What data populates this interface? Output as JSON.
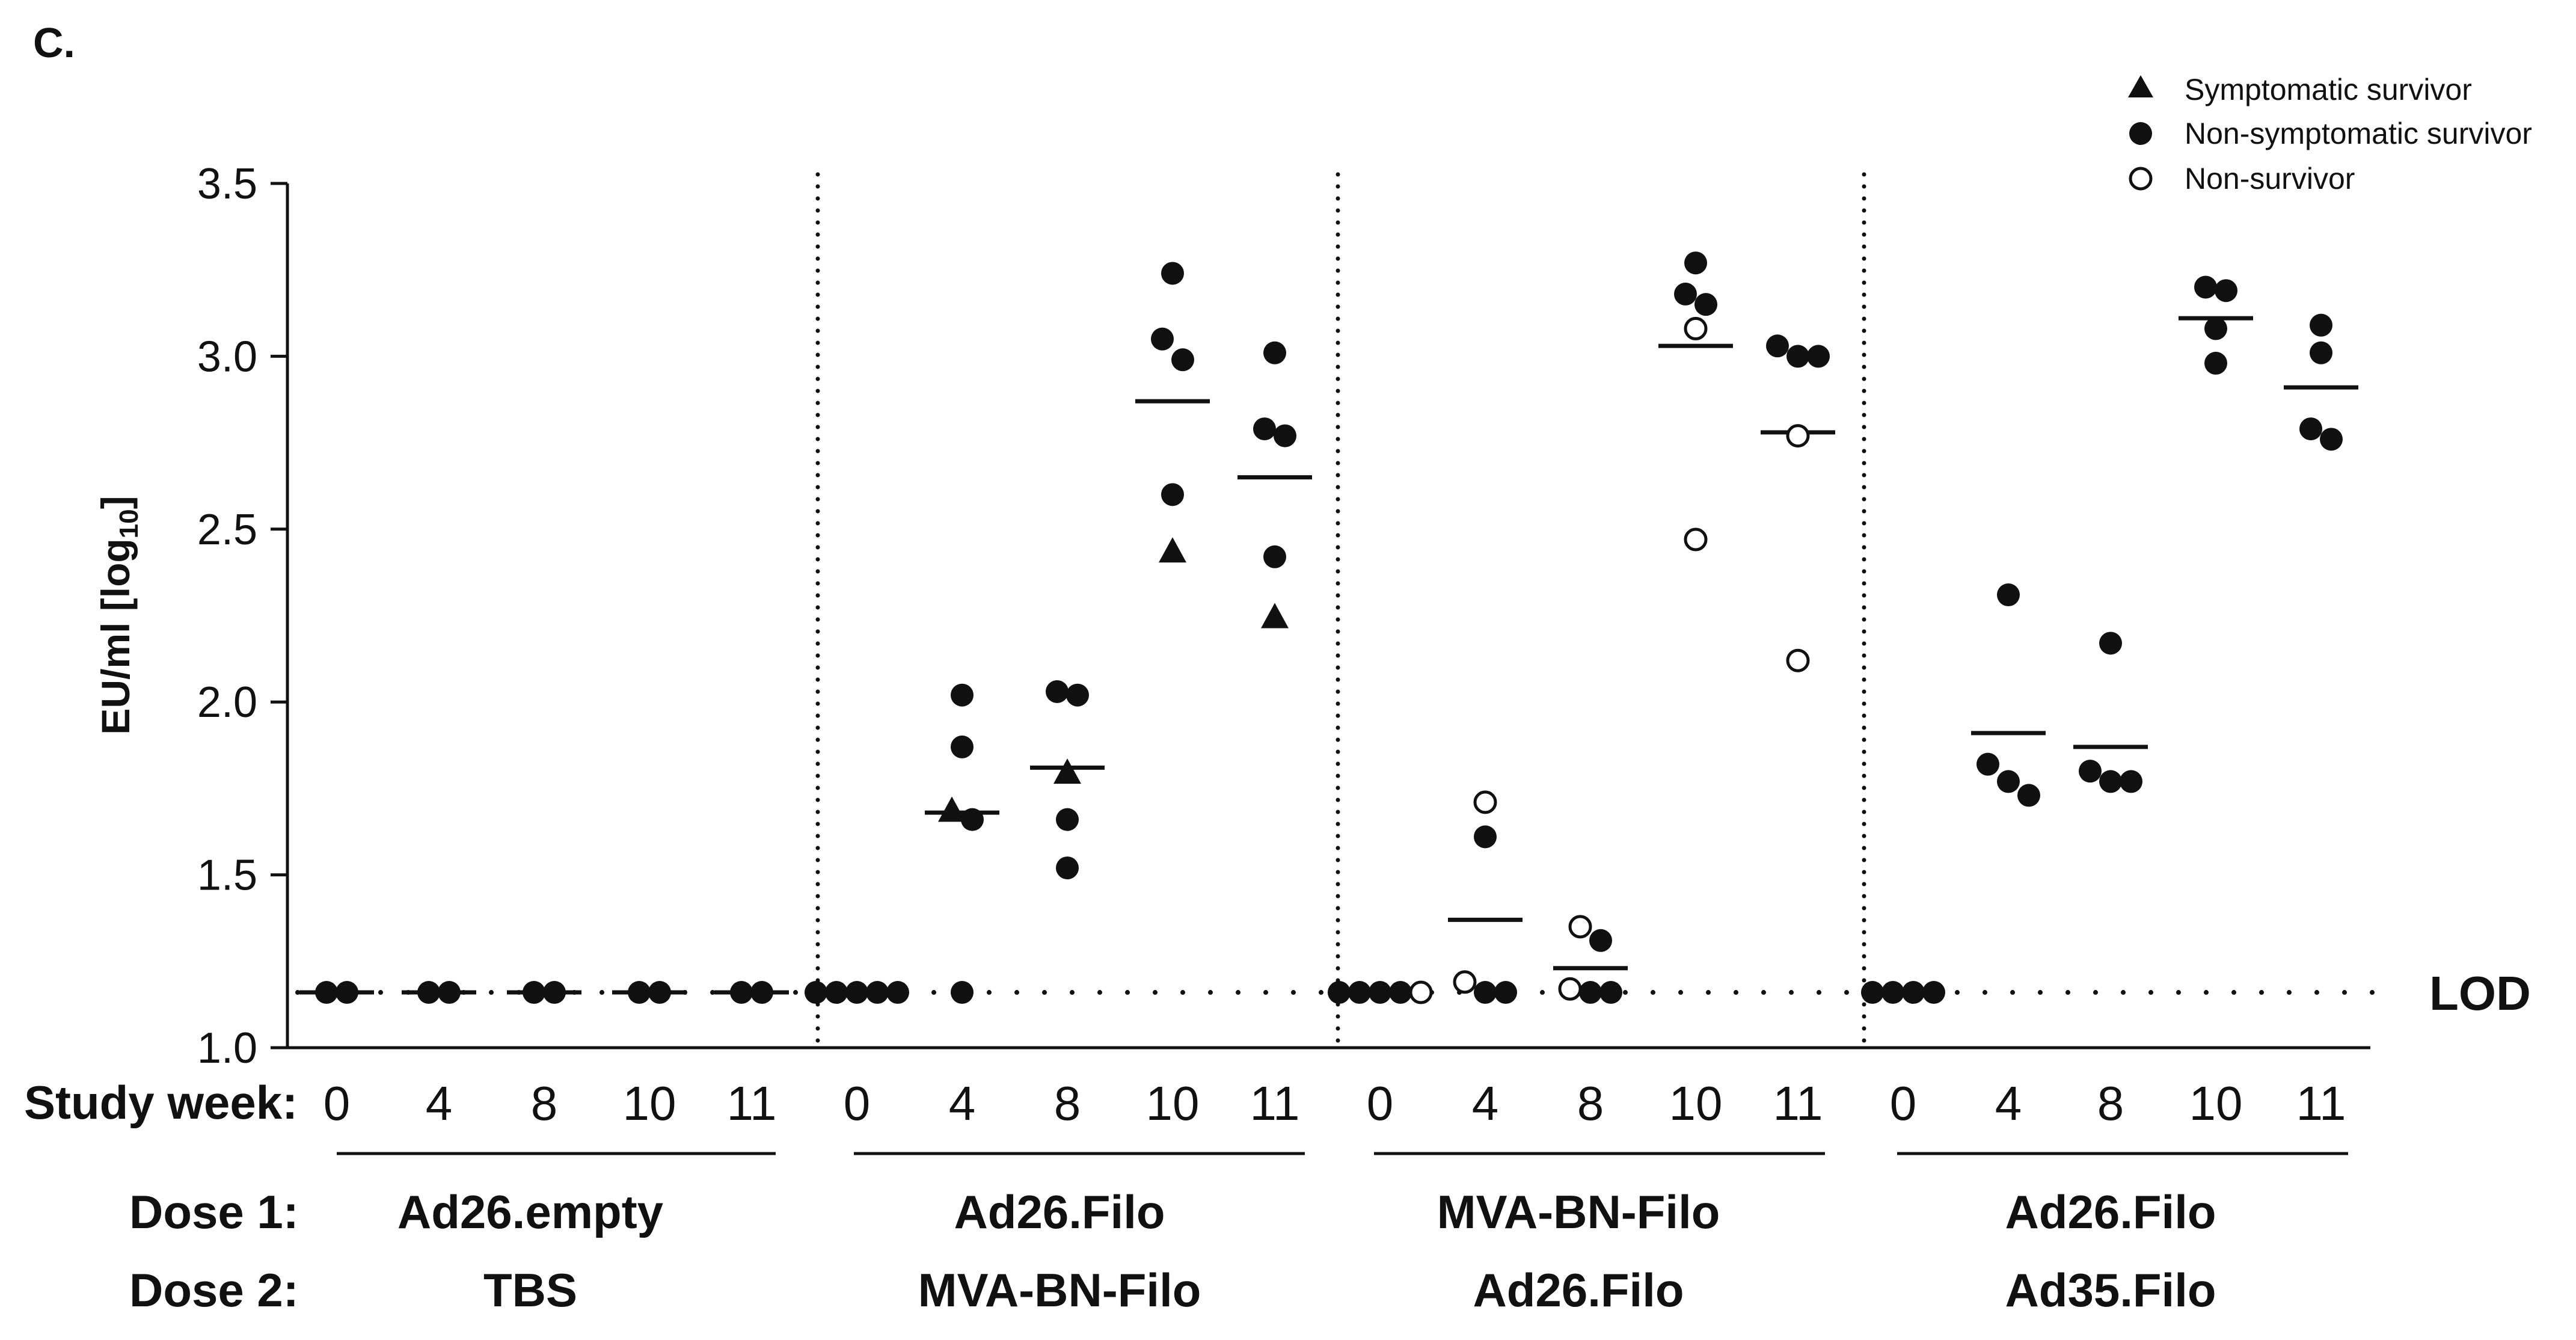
{
  "panel_label": "C.",
  "legend": [
    {
      "marker": "triangle",
      "label": "Symptomatic survivor"
    },
    {
      "marker": "filled-circle",
      "label": "Non-symptomatic survivor"
    },
    {
      "marker": "open-circle",
      "label": "Non-survivor"
    }
  ],
  "labels": {
    "study_week": "Study week:",
    "dose1": "Dose 1:",
    "dose2": "Dose 2:",
    "lod": "LOD"
  },
  "chart_data": {
    "type": "scatter",
    "title": "",
    "ylabel": "EU/ml [log10]",
    "ylim": [
      1.0,
      3.5
    ],
    "yticks": [
      "1.0",
      "1.5",
      "2.0",
      "2.5",
      "3.0",
      "3.5"
    ],
    "lod": 1.16,
    "weeks": [
      "0",
      "4",
      "8",
      "10",
      "11"
    ],
    "groups": [
      {
        "dose1": "Ad26.empty",
        "dose2": "TBS",
        "timepoints": [
          {
            "week": "0",
            "mean": 1.16,
            "points": [
              {
                "v": 1.16,
                "t": "filled"
              },
              {
                "v": 1.16,
                "t": "filled"
              }
            ]
          },
          {
            "week": "4",
            "mean": 1.16,
            "points": [
              {
                "v": 1.16,
                "t": "filled"
              },
              {
                "v": 1.16,
                "t": "filled"
              }
            ]
          },
          {
            "week": "8",
            "mean": 1.16,
            "points": [
              {
                "v": 1.16,
                "t": "filled"
              },
              {
                "v": 1.16,
                "t": "filled"
              }
            ]
          },
          {
            "week": "10",
            "mean": 1.16,
            "points": [
              {
                "v": 1.16,
                "t": "filled"
              },
              {
                "v": 1.16,
                "t": "filled"
              }
            ]
          },
          {
            "week": "11",
            "mean": 1.16,
            "points": [
              {
                "v": 1.16,
                "t": "filled"
              },
              {
                "v": 1.16,
                "t": "filled"
              }
            ]
          }
        ]
      },
      {
        "dose1": "Ad26.Filo",
        "dose2": "MVA-BN-Filo",
        "timepoints": [
          {
            "week": "0",
            "mean": 1.16,
            "points": [
              {
                "v": 1.16,
                "t": "filled"
              },
              {
                "v": 1.16,
                "t": "filled"
              },
              {
                "v": 1.16,
                "t": "filled"
              },
              {
                "v": 1.16,
                "t": "filled"
              },
              {
                "v": 1.16,
                "t": "filled"
              }
            ]
          },
          {
            "week": "4",
            "mean": 1.68,
            "points": [
              {
                "v": 2.02,
                "t": "filled"
              },
              {
                "v": 1.87,
                "t": "filled"
              },
              {
                "v": 1.69,
                "t": "triangle"
              },
              {
                "v": 1.66,
                "t": "filled"
              },
              {
                "v": 1.16,
                "t": "filled"
              }
            ]
          },
          {
            "week": "8",
            "mean": 1.81,
            "points": [
              {
                "v": 2.03,
                "t": "filled"
              },
              {
                "v": 2.02,
                "t": "filled"
              },
              {
                "v": 1.8,
                "t": "triangle"
              },
              {
                "v": 1.66,
                "t": "filled"
              },
              {
                "v": 1.52,
                "t": "filled"
              }
            ]
          },
          {
            "week": "10",
            "mean": 2.87,
            "points": [
              {
                "v": 3.24,
                "t": "filled"
              },
              {
                "v": 3.05,
                "t": "filled"
              },
              {
                "v": 2.99,
                "t": "filled"
              },
              {
                "v": 2.6,
                "t": "filled"
              },
              {
                "v": 2.44,
                "t": "triangle"
              }
            ]
          },
          {
            "week": "11",
            "mean": 2.65,
            "points": [
              {
                "v": 3.01,
                "t": "filled"
              },
              {
                "v": 2.79,
                "t": "filled"
              },
              {
                "v": 2.77,
                "t": "filled"
              },
              {
                "v": 2.42,
                "t": "filled"
              },
              {
                "v": 2.25,
                "t": "triangle"
              }
            ]
          }
        ]
      },
      {
        "dose1": "MVA-BN-Filo",
        "dose2": "Ad26.Filo",
        "timepoints": [
          {
            "week": "0",
            "mean": 1.16,
            "points": [
              {
                "v": 1.16,
                "t": "filled"
              },
              {
                "v": 1.16,
                "t": "filled"
              },
              {
                "v": 1.16,
                "t": "filled"
              },
              {
                "v": 1.16,
                "t": "filled"
              },
              {
                "v": 1.16,
                "t": "open"
              }
            ]
          },
          {
            "week": "4",
            "mean": 1.37,
            "points": [
              {
                "v": 1.71,
                "t": "open"
              },
              {
                "v": 1.61,
                "t": "filled"
              },
              {
                "v": 1.19,
                "t": "open"
              },
              {
                "v": 1.16,
                "t": "filled"
              },
              {
                "v": 1.16,
                "t": "filled"
              }
            ]
          },
          {
            "week": "8",
            "mean": 1.23,
            "points": [
              {
                "v": 1.35,
                "t": "open"
              },
              {
                "v": 1.31,
                "t": "filled"
              },
              {
                "v": 1.17,
                "t": "open"
              },
              {
                "v": 1.16,
                "t": "filled"
              },
              {
                "v": 1.16,
                "t": "filled"
              }
            ]
          },
          {
            "week": "10",
            "mean": 3.03,
            "points": [
              {
                "v": 3.27,
                "t": "filled"
              },
              {
                "v": 3.18,
                "t": "filled"
              },
              {
                "v": 3.15,
                "t": "filled"
              },
              {
                "v": 3.08,
                "t": "open"
              },
              {
                "v": 2.47,
                "t": "open"
              }
            ]
          },
          {
            "week": "11",
            "mean": 2.78,
            "points": [
              {
                "v": 3.03,
                "t": "filled"
              },
              {
                "v": 3.0,
                "t": "filled"
              },
              {
                "v": 3.0,
                "t": "filled"
              },
              {
                "v": 2.77,
                "t": "open"
              },
              {
                "v": 2.12,
                "t": "open"
              }
            ]
          }
        ]
      },
      {
        "dose1": "Ad26.Filo",
        "dose2": "Ad35.Filo",
        "timepoints": [
          {
            "week": "0",
            "mean": 1.16,
            "points": [
              {
                "v": 1.16,
                "t": "filled"
              },
              {
                "v": 1.16,
                "t": "filled"
              },
              {
                "v": 1.16,
                "t": "filled"
              },
              {
                "v": 1.16,
                "t": "filled"
              }
            ]
          },
          {
            "week": "4",
            "mean": 1.91,
            "points": [
              {
                "v": 2.31,
                "t": "filled"
              },
              {
                "v": 1.82,
                "t": "filled"
              },
              {
                "v": 1.77,
                "t": "filled"
              },
              {
                "v": 1.73,
                "t": "filled"
              }
            ]
          },
          {
            "week": "8",
            "mean": 1.87,
            "points": [
              {
                "v": 2.17,
                "t": "filled"
              },
              {
                "v": 1.8,
                "t": "filled"
              },
              {
                "v": 1.77,
                "t": "filled"
              },
              {
                "v": 1.77,
                "t": "filled"
              }
            ]
          },
          {
            "week": "10",
            "mean": 3.11,
            "points": [
              {
                "v": 3.2,
                "t": "filled"
              },
              {
                "v": 3.19,
                "t": "filled"
              },
              {
                "v": 3.08,
                "t": "filled"
              },
              {
                "v": 2.98,
                "t": "filled"
              }
            ]
          },
          {
            "week": "11",
            "mean": 2.91,
            "points": [
              {
                "v": 3.09,
                "t": "filled"
              },
              {
                "v": 3.01,
                "t": "filled"
              },
              {
                "v": 2.79,
                "t": "filled"
              },
              {
                "v": 2.76,
                "t": "filled"
              }
            ]
          }
        ]
      }
    ]
  }
}
